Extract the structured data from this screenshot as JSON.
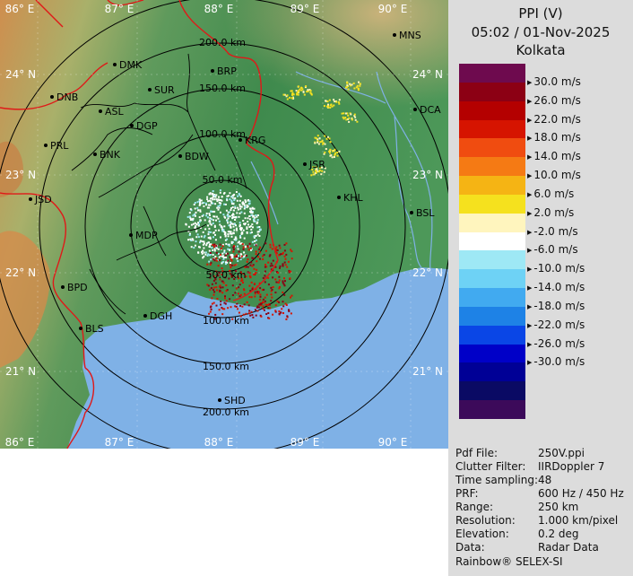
{
  "header": {
    "product": "PPI (V)",
    "datetime": "05:02 / 01-Nov-2025",
    "station": "Kolkata"
  },
  "legend": {
    "labels": [
      "30.0 m/s",
      "26.0 m/s",
      "22.0 m/s",
      "18.0 m/s",
      "14.0 m/s",
      "10.0 m/s",
      "6.0 m/s",
      "2.0 m/s",
      "-2.0 m/s",
      "-6.0 m/s",
      "-10.0 m/s",
      "-14.0 m/s",
      "-18.0 m/s",
      "-22.0 m/s",
      "-26.0 m/s",
      "-30.0 m/s"
    ],
    "colors": [
      "#6e0a4e",
      "#8c0014",
      "#b40000",
      "#d61400",
      "#f04c10",
      "#f57a14",
      "#f5b414",
      "#f5e11e",
      "#fff5be",
      "#ffffff",
      "#9ee8f5",
      "#6ed2f5",
      "#41aaf0",
      "#1e82e6",
      "#0a46e6",
      "#0000c8",
      "#000096",
      "#0a0a64",
      "#3c0a5a"
    ]
  },
  "map": {
    "lon_labels": [
      "86° E",
      "87° E",
      "88° E",
      "89° E",
      "90° E"
    ],
    "lat_labels": [
      "24° N",
      "23° N",
      "22° N",
      "21° N"
    ],
    "range_labels": [
      "50.0 km",
      "100.0 km",
      "150.0 km",
      "200.0 km"
    ],
    "places": [
      {
        "name": "MNS"
      },
      {
        "name": "DMK"
      },
      {
        "name": "BRP"
      },
      {
        "name": "DNB"
      },
      {
        "name": "SUR"
      },
      {
        "name": "ASL"
      },
      {
        "name": "DGP"
      },
      {
        "name": "DCA"
      },
      {
        "name": "PRL"
      },
      {
        "name": "BNK"
      },
      {
        "name": "KRG"
      },
      {
        "name": "BDW"
      },
      {
        "name": "JSR"
      },
      {
        "name": "JSD"
      },
      {
        "name": "KHL"
      },
      {
        "name": "MDP"
      },
      {
        "name": "BSL"
      },
      {
        "name": "BPD"
      },
      {
        "name": "DGH"
      },
      {
        "name": "BLS"
      },
      {
        "name": "SHD"
      }
    ]
  },
  "metadata": [
    {
      "key": "Pdf File:",
      "value": "250V.ppi"
    },
    {
      "key": "Clutter Filter:",
      "value": "IIRDoppler 7"
    },
    {
      "key": "Time sampling:",
      "value": "48"
    },
    {
      "key": "PRF:",
      "value": "600 Hz / 450 Hz"
    },
    {
      "key": "Range:",
      "value": "250 km"
    },
    {
      "key": "Resolution:",
      "value": "1.000 km/pixel"
    },
    {
      "key": "Elevation:",
      "value": "0.2 deg"
    },
    {
      "key": "Data:",
      "value": "Radar Data"
    }
  ],
  "footer": "Rainbow® SELEX-SI"
}
